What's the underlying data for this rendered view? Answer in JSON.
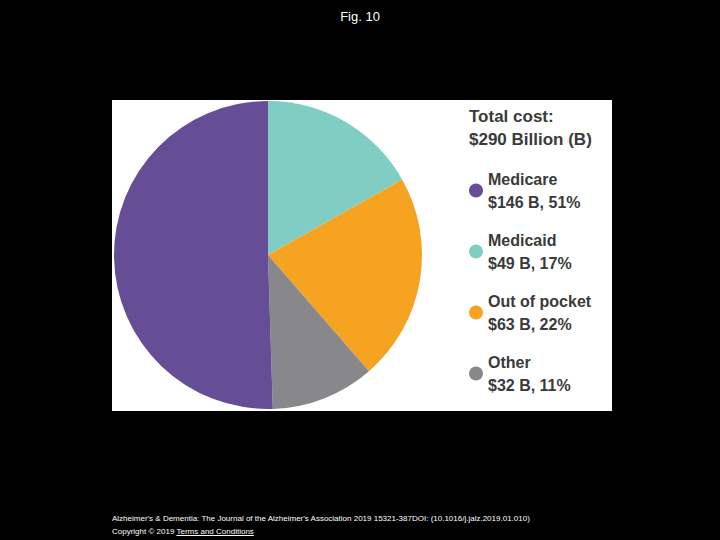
{
  "chart_data": {
    "type": "pie",
    "title": "Fig. 10",
    "legend_title": [
      "Total cost:",
      "$290 Billion (B)"
    ],
    "categories": [
      "Medicare",
      "Medicaid",
      "Out of pocket",
      "Other"
    ],
    "values": [
      51,
      17,
      22,
      11
    ],
    "value_labels": [
      "$146 B, 51%",
      "$49 B, 17%",
      "$63 B, 22%",
      "$32 B, 11%"
    ],
    "colors": [
      "#664e96",
      "#80cdc4",
      "#f6a321",
      "#88888b"
    ],
    "legend": "right",
    "data_labels": false,
    "source": "Alzheimer's & Dementia: The Journal of the Alzheimer's Association 2019 15321-387DOI: (10.1016/j.jalz.2019.01.010)",
    "copyright": "Copyright © 2019",
    "link": "Terms and Conditions"
  }
}
